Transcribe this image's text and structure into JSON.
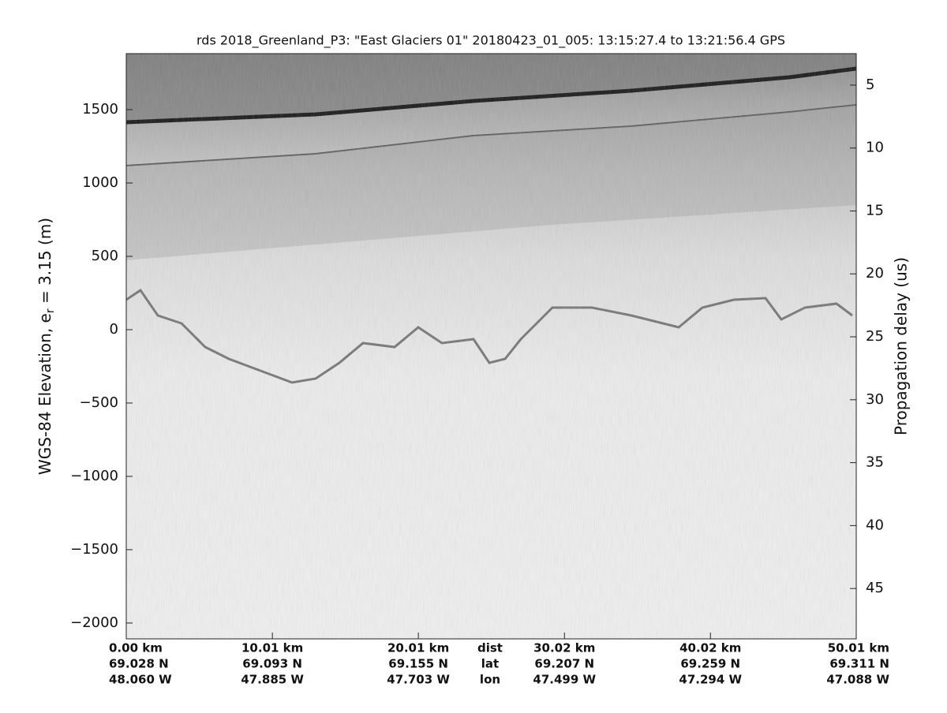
{
  "chart_data": {
    "type": "echogram",
    "title": "rds 2018_Greenland_P3: \"East Glaciers 01\"  20180423_01_005: 13:15:27.4 to 13:21:56.4 GPS",
    "ylabel": [
      "WGS-84 Elevation, e",
      "r",
      " = 3.15 (m)"
    ],
    "y2label": "Propagation delay (us)",
    "ylim": [
      -2108,
      1882
    ],
    "yticks": [
      {
        "value": -2000,
        "label": "−2000"
      },
      {
        "value": -1500,
        "label": "−1500"
      },
      {
        "value": -1000,
        "label": "−1000"
      },
      {
        "value": -500,
        "label": "−500"
      },
      0,
      500,
      1000,
      1500
    ],
    "y2lim": [
      49,
      2.5
    ],
    "y2ticks": [
      5,
      10,
      15,
      20,
      25,
      30,
      35,
      40,
      45
    ],
    "xlim": [
      0,
      50.01
    ],
    "xticks": [
      {
        "value": 0,
        "label": "0.00 km"
      },
      {
        "value": 10.01,
        "label": "10.01 km"
      },
      {
        "value": 20.01,
        "label": "20.01 km"
      },
      {
        "value": 30.02,
        "label": "30.02 km"
      },
      {
        "value": 40.02,
        "label": "40.02 km"
      },
      {
        "value": 50.01,
        "label": "50.01 km"
      }
    ],
    "lat_labels": [
      "69.028 N",
      "69.093 N",
      "69.155 N",
      "69.207 N",
      "69.259 N",
      "69.311 N"
    ],
    "lon_labels": [
      "48.060 W",
      "47.885 W",
      "47.703 W",
      "47.499 W",
      "47.294 W",
      "47.088 W"
    ],
    "row_labels": [
      "dist",
      "lat",
      "lon"
    ]
  }
}
